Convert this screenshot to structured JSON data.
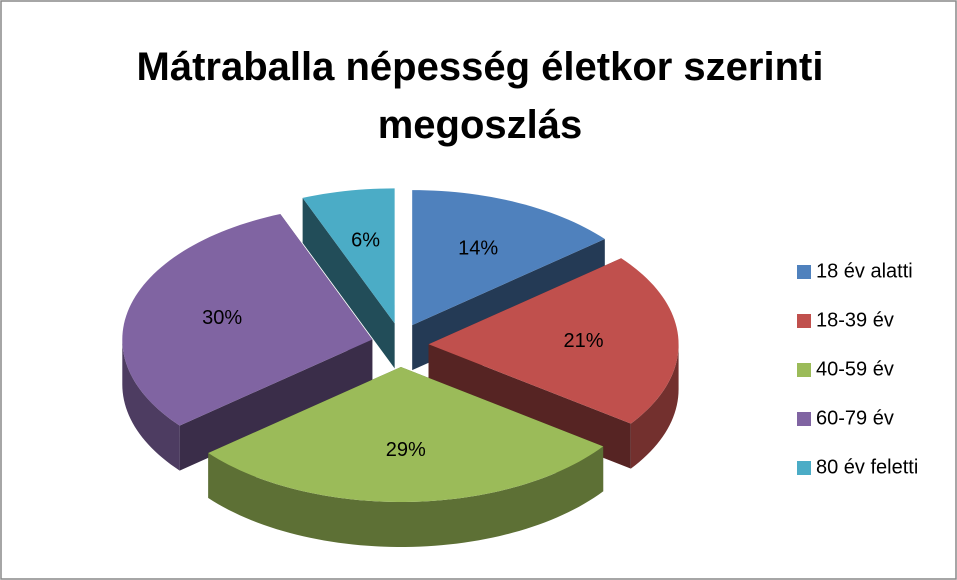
{
  "chart_data": {
    "type": "pie3d",
    "title": "Mátraballa népesség életkor szerinti megoszlás",
    "categories": [
      "18 év alatti",
      "18-39 év",
      "40-59 év",
      "60-79 év",
      "80 év feletti"
    ],
    "values": [
      14,
      21,
      29,
      30,
      6
    ],
    "value_labels": [
      "14%",
      "21%",
      "29%",
      "30%",
      "6%"
    ],
    "colors": [
      "#4f81bd",
      "#c0504d",
      "#9bbb59",
      "#8064a2",
      "#4bacc6"
    ],
    "legend": "right"
  }
}
